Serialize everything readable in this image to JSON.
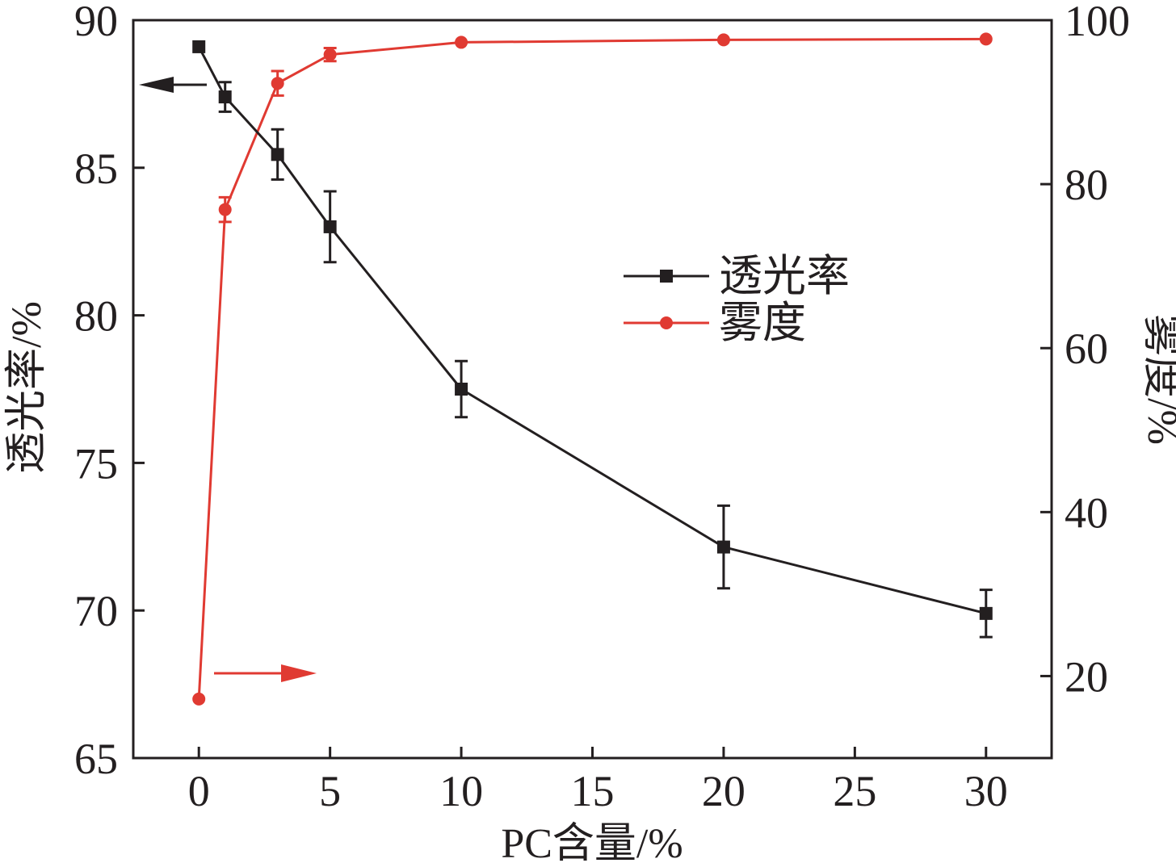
{
  "chart_data": {
    "type": "line",
    "xlabel": "PC含量/%",
    "ylabel_left": "透光率/%",
    "ylabel_right": "雾度/%",
    "xlim": [
      -2.5,
      32.5
    ],
    "ylim_left": [
      65,
      90
    ],
    "ylim_right": [
      10,
      100
    ],
    "x_ticks": [
      0,
      5,
      10,
      15,
      20,
      25,
      30
    ],
    "y_left_ticks": [
      65,
      70,
      75,
      80,
      85,
      90
    ],
    "y_right_ticks": [
      20,
      40,
      60,
      80,
      100
    ],
    "legend_position": "center-right",
    "grid": false,
    "series": [
      {
        "name": "透光率",
        "axis": "left",
        "marker": "square",
        "color": "#231f20",
        "x": [
          0,
          1,
          3,
          5,
          10,
          20,
          30
        ],
        "y": [
          89.1,
          87.4,
          85.45,
          83.0,
          77.5,
          72.15,
          69.9
        ],
        "err": [
          0,
          0.5,
          0.85,
          1.2,
          0.95,
          1.4,
          0.8
        ]
      },
      {
        "name": "雾度",
        "axis": "right",
        "marker": "circle",
        "color": "#e03a32",
        "x": [
          0,
          1,
          3,
          5,
          10,
          20,
          30
        ],
        "y": [
          17.2,
          76.9,
          92.3,
          95.8,
          97.3,
          97.6,
          97.7
        ],
        "err": [
          0,
          1.5,
          1.5,
          0.8,
          0,
          0,
          0
        ]
      }
    ],
    "annotations": [
      {
        "type": "arrow",
        "points_to": "left-axis",
        "series": "透光率"
      },
      {
        "type": "arrow",
        "points_to": "right-axis",
        "series": "雾度"
      }
    ]
  }
}
